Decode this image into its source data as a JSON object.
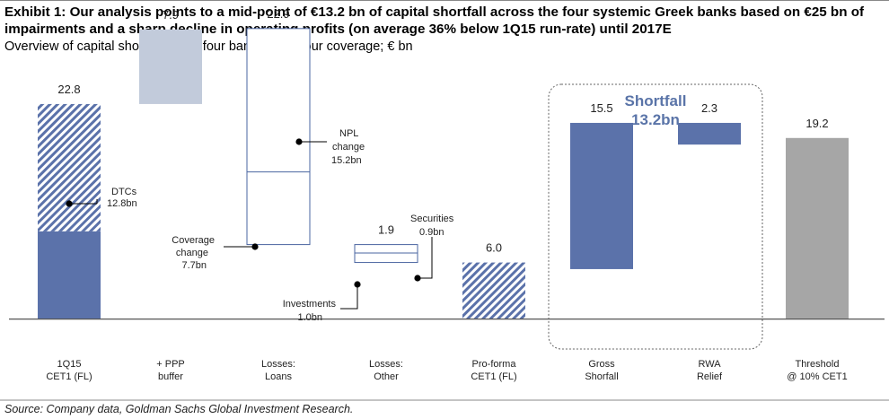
{
  "title": "Exhibit 1: Our analysis points to a mid-point of €13.2 bn of capital shortfall across the four systemic Greek banks based on €25 bn of impairments and a sharp decline in operating profits (on average 36% below 1Q15 run-rate) until 2017E",
  "subtitle": "Overview of capital shortfall for all four banks under our coverage; € bn",
  "source": "Source: Company data, Goldman Sachs Global Investment Research.",
  "colors": {
    "dark_blue": "#5b72aa",
    "light_blue": "#c2cbdb",
    "grey": "#a6a6a6",
    "outline": "#4a64a0"
  },
  "chart_data": {
    "type": "bar",
    "subtype": "waterfall",
    "ylim": [
      -2.6,
      28.5
    ],
    "categories": [
      {
        "key": "cet1",
        "label": [
          "1Q15",
          "CET1 (FL)"
        ],
        "value": "22.8",
        "start": 0,
        "end": 22.8,
        "style": "dark_with_hatch",
        "solid_part": 9.3
      },
      {
        "key": "ppp",
        "label": [
          "+ PPP",
          "buffer"
        ],
        "value": "7.9",
        "start": 22.8,
        "end": 30.7,
        "style": "light"
      },
      {
        "key": "loans",
        "label": [
          "Losses:",
          "Loans"
        ],
        "value": "22.9",
        "start": 7.9,
        "end": 30.8,
        "style": "outline",
        "split_at": 15.6
      },
      {
        "key": "other",
        "label": [
          "Losses:",
          "Other"
        ],
        "value": "1.9",
        "start": 6.0,
        "end": 7.9,
        "style": "outline",
        "split_at": 7.0
      },
      {
        "key": "proforma",
        "label": [
          "Pro-forma",
          "CET1 (FL)"
        ],
        "value": "6.0",
        "start": 0,
        "end": 6.0,
        "style": "hatch"
      },
      {
        "key": "gross",
        "label": [
          "Gross",
          "Shorfall"
        ],
        "value": "15.5",
        "start": 5.3,
        "end": 20.8,
        "style": "dark"
      },
      {
        "key": "rwa",
        "label": [
          "RWA",
          "Relief"
        ],
        "value": "2.3",
        "start": 18.5,
        "end": 20.8,
        "style": "dark"
      },
      {
        "key": "threshold",
        "label": [
          "Threshold",
          "@ 10% CET1"
        ],
        "value": "19.2",
        "start": 0,
        "end": 19.2,
        "style": "grey"
      }
    ],
    "annotations": [
      {
        "key": "dtcs",
        "lines": [
          "DTCs",
          "12.8bn"
        ],
        "target": "cet1"
      },
      {
        "key": "npl",
        "lines": [
          "NPL",
          "change",
          "15.2bn"
        ],
        "target": "loans"
      },
      {
        "key": "coverage",
        "lines": [
          "Coverage",
          "change",
          "7.7bn"
        ],
        "target": "loans"
      },
      {
        "key": "securities",
        "lines": [
          "Securities",
          "0.9bn"
        ],
        "target": "other"
      },
      {
        "key": "investments",
        "lines": [
          "Investments",
          "1.0bn"
        ],
        "target": "other"
      }
    ],
    "shortfall_box": {
      "title": "Shortfall",
      "value": "13.2bn"
    }
  }
}
